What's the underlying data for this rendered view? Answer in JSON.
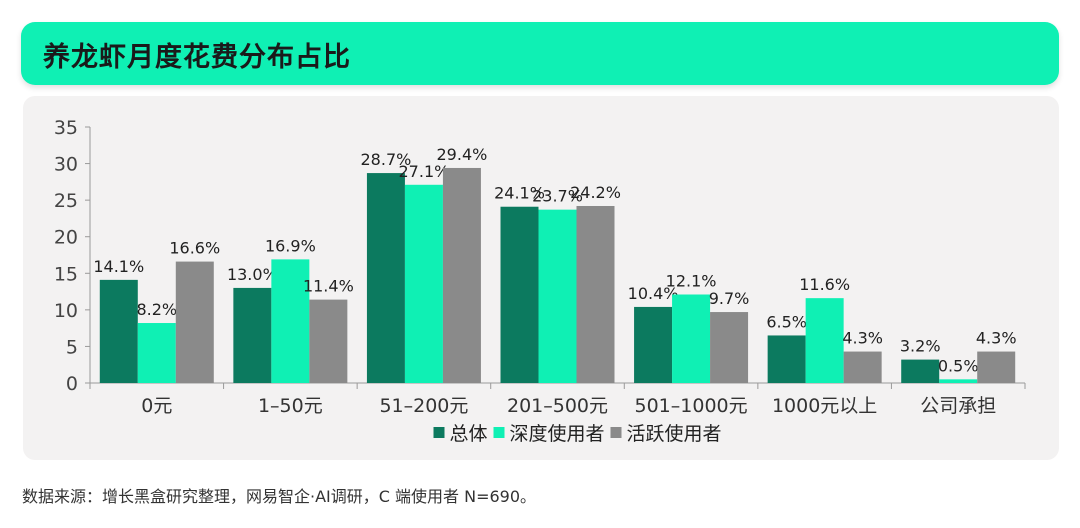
{
  "title": "养龙虾月度花费分布占比",
  "source": "数据来源：增长黑盒研究整理，网易智企·AI调研，C 端使用者 N=690。",
  "colors": {
    "banner": "#0ff0b4",
    "panel": "#f3f2f2"
  },
  "chart_data": {
    "type": "bar",
    "categories": [
      "0元",
      "1–50元",
      "51–200元",
      "201–500元",
      "501–1000元",
      "1000元以上",
      "公司承担"
    ],
    "series": [
      {
        "name": "总体",
        "color": "#0c7a5f",
        "values": [
          14.1,
          13.0,
          28.7,
          24.1,
          10.4,
          6.5,
          3.2
        ]
      },
      {
        "name": "深度使用者",
        "color": "#0ff0b4",
        "values": [
          8.2,
          16.9,
          27.1,
          23.7,
          12.1,
          11.6,
          0.5
        ]
      },
      {
        "name": "活跃使用者",
        "color": "#8a8a8a",
        "values": [
          16.6,
          11.4,
          29.4,
          24.2,
          9.7,
          4.3,
          4.3
        ]
      }
    ],
    "ylim": [
      0,
      35
    ],
    "yticks": [
      0,
      5,
      10,
      15,
      20,
      25,
      30,
      35
    ],
    "legend": "bottom-center"
  }
}
